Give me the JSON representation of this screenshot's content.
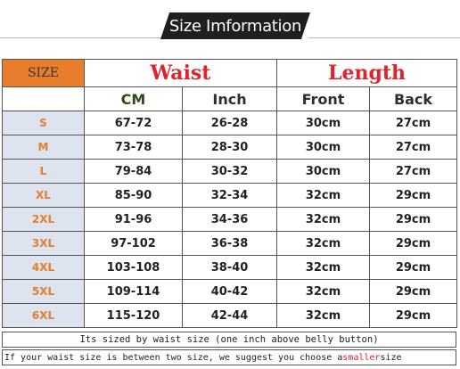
{
  "banner_title": "Size Imformation",
  "headers": {
    "size": "SIZE",
    "waist": "Waist",
    "length": "Length",
    "cm": "CM",
    "inch": "Inch",
    "front": "Front",
    "back": "Back"
  },
  "rows": [
    {
      "size": "S",
      "cm": "67-72",
      "inch": "26-28",
      "front": "30cm",
      "back": "27cm"
    },
    {
      "size": "M",
      "cm": "73-78",
      "inch": "28-30",
      "front": "30cm",
      "back": "27cm"
    },
    {
      "size": "L",
      "cm": "79-84",
      "inch": "30-32",
      "front": "30cm",
      "back": "27cm"
    },
    {
      "size": "XL",
      "cm": "85-90",
      "inch": "32-34",
      "front": "32cm",
      "back": "29cm"
    },
    {
      "size": "2XL",
      "cm": "91-96",
      "inch": "34-36",
      "front": "32cm",
      "back": "29cm"
    },
    {
      "size": "3XL",
      "cm": "97-102",
      "inch": "36-38",
      "front": "32cm",
      "back": "29cm"
    },
    {
      "size": "4XL",
      "cm": "103-108",
      "inch": "38-40",
      "front": "32cm",
      "back": "29cm"
    },
    {
      "size": "5XL",
      "cm": "109-114",
      "inch": "40-42",
      "front": "32cm",
      "back": "29cm"
    },
    {
      "size": "6XL",
      "cm": "115-120",
      "inch": "42-44",
      "front": "32cm",
      "back": "29cm"
    }
  ],
  "notes": {
    "line1": "Its sized by waist size (one inch above belly button)",
    "line2_before": "If your waist size is between two size, we suggest you choose a ",
    "line2_highlight": "smaller",
    "line2_after": " size"
  },
  "colors": {
    "accent_orange": "#e87d2b",
    "header_red": "#e0242b",
    "size_cell_bg": "#dde4ef"
  }
}
